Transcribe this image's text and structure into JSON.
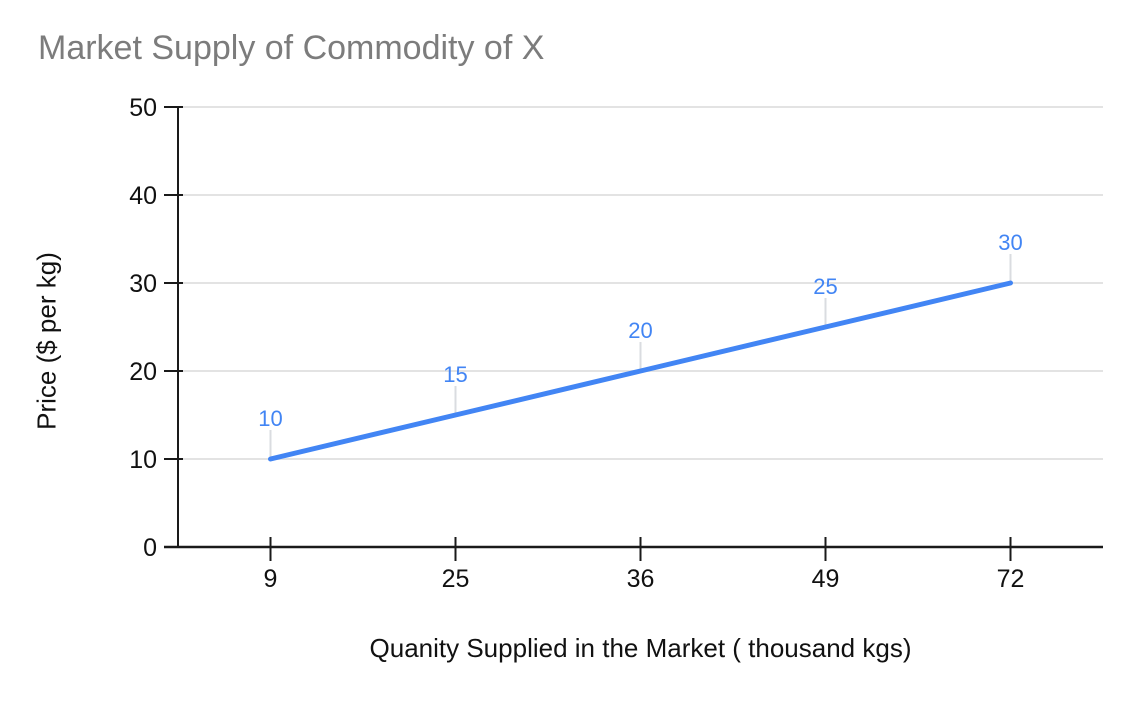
{
  "chart_data": {
    "type": "line",
    "title": "Market Supply of Commodity of X",
    "xlabel": "Quanity Supplied in the Market ( thousand kgs)",
    "ylabel": "Price ($ per kg)",
    "categories": [
      "9",
      "25",
      "36",
      "49",
      "72"
    ],
    "values": [
      10,
      15,
      20,
      25,
      30
    ],
    "data_labels": [
      "10",
      "15",
      "20",
      "25",
      "30"
    ],
    "y_ticks": [
      0,
      10,
      20,
      30,
      40,
      50
    ],
    "ylim": [
      0,
      50
    ],
    "grid": "horizontal",
    "legend": "none"
  },
  "colors": {
    "background": "#ffffff",
    "title": "#7c7c7c",
    "series_line": "#4285f4",
    "data_label": "#4285f4",
    "gridline": "#e3e3e3",
    "leader_line": "#dadce0",
    "axis": "#1a1a1a",
    "tick_label": "#111111",
    "axis_title": "#111111"
  }
}
